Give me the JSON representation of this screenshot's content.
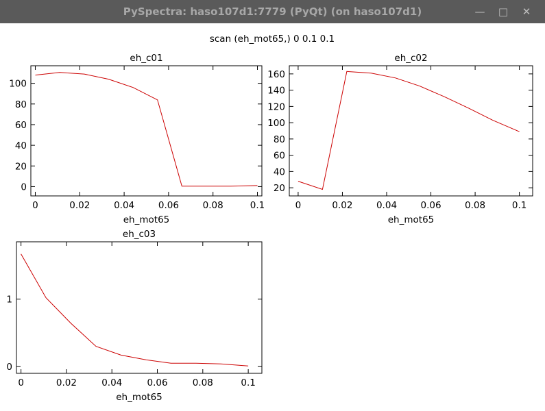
{
  "window": {
    "title": "PySpectra: haso107d1:7779 (PyQt) (on haso107d1)",
    "controls": {
      "minimize_icon": "minimize-icon",
      "maximize_icon": "maximize-icon",
      "close_icon": "close-icon"
    }
  },
  "figure_title": "scan (eh_mot65,) 0 0.1 0.1",
  "colors": {
    "line": "#cc0000",
    "titlebar": "#5a5a5a"
  },
  "chart_data": [
    {
      "type": "line",
      "title": "eh_c01",
      "xlabel": "eh_mot65",
      "ylabel": "",
      "xlim": [
        -0.002,
        0.102
      ],
      "ylim": [
        -9,
        117
      ],
      "xticks": [
        0,
        0.02,
        0.04,
        0.06,
        0.08,
        0.1
      ],
      "xtick_labels": [
        "0",
        "0.02",
        "0.04",
        "0.06",
        "0.08",
        "0.1"
      ],
      "yticks": [
        0,
        20,
        40,
        60,
        80,
        100
      ],
      "ytick_labels": [
        "0",
        "20",
        "40",
        "60",
        "80",
        "100"
      ],
      "series": [
        {
          "x": [
            0,
            0.011,
            0.022,
            0.033,
            0.044,
            0.055,
            0.066,
            0.077,
            0.088,
            0.1
          ],
          "y": [
            108,
            110.5,
            109,
            104,
            96,
            84,
            0.5,
            0.5,
            0.5,
            1
          ]
        }
      ]
    },
    {
      "type": "line",
      "title": "eh_c02",
      "xlabel": "eh_mot65",
      "ylabel": "",
      "xlim": [
        -0.004,
        0.106
      ],
      "ylim": [
        10,
        170
      ],
      "xticks": [
        0,
        0.02,
        0.04,
        0.06,
        0.08,
        0.1
      ],
      "xtick_labels": [
        "0",
        "0.02",
        "0.04",
        "0.06",
        "0.08",
        "0.1"
      ],
      "yticks": [
        20,
        40,
        60,
        80,
        100,
        120,
        140,
        160
      ],
      "ytick_labels": [
        "20",
        "40",
        "60",
        "80",
        "100",
        "120",
        "140",
        "160"
      ],
      "series": [
        {
          "x": [
            0,
            0.011,
            0.022,
            0.033,
            0.044,
            0.055,
            0.066,
            0.077,
            0.088,
            0.1
          ],
          "y": [
            28,
            18,
            163,
            161,
            155,
            145,
            132,
            118,
            103,
            89
          ]
        }
      ]
    },
    {
      "type": "line",
      "title": "eh_c03",
      "xlabel": "eh_mot65",
      "ylabel": "",
      "xlim": [
        -0.002,
        0.106
      ],
      "ylim": [
        -0.1,
        1.85
      ],
      "xticks": [
        0,
        0.02,
        0.04,
        0.06,
        0.08,
        0.1
      ],
      "xtick_labels": [
        "0",
        "0.02",
        "0.04",
        "0.06",
        "0.08",
        "0.1"
      ],
      "yticks": [
        0,
        1
      ],
      "ytick_labels": [
        "0",
        "1"
      ],
      "series": [
        {
          "x": [
            0,
            0.011,
            0.022,
            0.033,
            0.044,
            0.055,
            0.066,
            0.077,
            0.088,
            0.1
          ],
          "y": [
            1.67,
            1.02,
            0.64,
            0.3,
            0.17,
            0.1,
            0.05,
            0.05,
            0.04,
            0.01
          ]
        }
      ]
    }
  ]
}
